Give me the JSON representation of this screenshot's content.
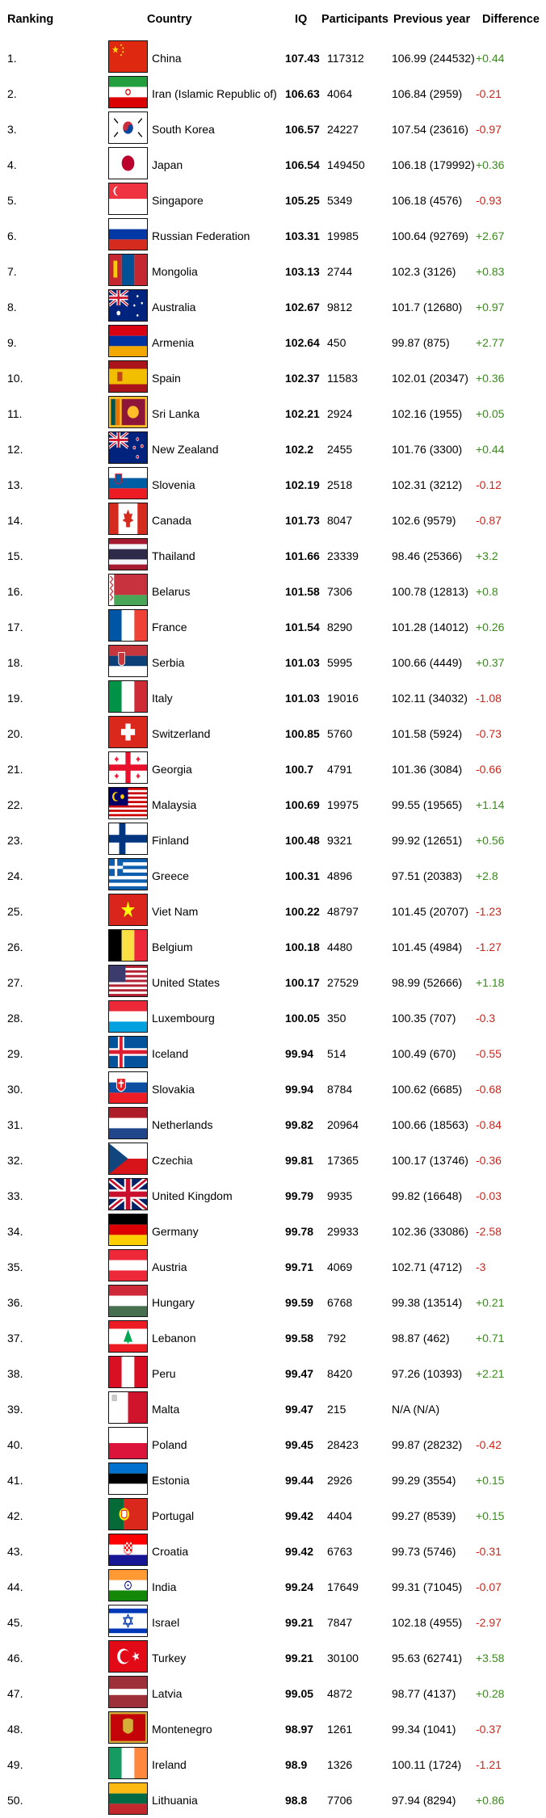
{
  "headers": {
    "ranking": "Ranking",
    "country": "Country",
    "iq": "IQ",
    "participants": "Participants",
    "previous": "Previous year",
    "difference": "Difference"
  },
  "rows": [
    {
      "rank": "1.",
      "country": "China",
      "iq": "107.43",
      "participants": "117312",
      "previous": "106.99 (244532)",
      "diff": "+0.44",
      "flag": "china-flag"
    },
    {
      "rank": "2.",
      "country": "Iran (Islamic Republic of)",
      "iq": "106.63",
      "participants": "4064",
      "previous": "106.84 (2959)",
      "diff": "-0.21",
      "flag": "iran-flag"
    },
    {
      "rank": "3.",
      "country": "South Korea",
      "iq": "106.57",
      "participants": "24227",
      "previous": "107.54 (23616)",
      "diff": "-0.97",
      "flag": "south-korea-flag"
    },
    {
      "rank": "4.",
      "country": "Japan",
      "iq": "106.54",
      "participants": "149450",
      "previous": "106.18 (179992)",
      "diff": "+0.36",
      "flag": "japan-flag"
    },
    {
      "rank": "5.",
      "country": "Singapore",
      "iq": "105.25",
      "participants": "5349",
      "previous": "106.18 (4576)",
      "diff": "-0.93",
      "flag": "singapore-flag"
    },
    {
      "rank": "6.",
      "country": "Russian Federation",
      "iq": "103.31",
      "participants": "19985",
      "previous": "100.64 (92769)",
      "diff": "+2.67",
      "flag": "russia-flag"
    },
    {
      "rank": "7.",
      "country": "Mongolia",
      "iq": "103.13",
      "participants": "2744",
      "previous": "102.3 (3126)",
      "diff": "+0.83",
      "flag": "mongolia-flag"
    },
    {
      "rank": "8.",
      "country": "Australia",
      "iq": "102.67",
      "participants": "9812",
      "previous": "101.7 (12680)",
      "diff": "+0.97",
      "flag": "australia-flag"
    },
    {
      "rank": "9.",
      "country": "Armenia",
      "iq": "102.64",
      "participants": "450",
      "previous": "99.87 (875)",
      "diff": "+2.77",
      "flag": "armenia-flag"
    },
    {
      "rank": "10.",
      "country": "Spain",
      "iq": "102.37",
      "participants": "11583",
      "previous": "102.01 (20347)",
      "diff": "+0.36",
      "flag": "spain-flag"
    },
    {
      "rank": "11.",
      "country": "Sri Lanka",
      "iq": "102.21",
      "participants": "2924",
      "previous": "102.16 (1955)",
      "diff": "+0.05",
      "flag": "sri-lanka-flag"
    },
    {
      "rank": "12.",
      "country": "New Zealand",
      "iq": "102.2",
      "participants": "2455",
      "previous": "101.76 (3300)",
      "diff": "+0.44",
      "flag": "new-zealand-flag"
    },
    {
      "rank": "13.",
      "country": "Slovenia",
      "iq": "102.19",
      "participants": "2518",
      "previous": "102.31 (3212)",
      "diff": "-0.12",
      "flag": "slovenia-flag"
    },
    {
      "rank": "14.",
      "country": "Canada",
      "iq": "101.73",
      "participants": "8047",
      "previous": "102.6 (9579)",
      "diff": "-0.87",
      "flag": "canada-flag"
    },
    {
      "rank": "15.",
      "country": "Thailand",
      "iq": "101.66",
      "participants": "23339",
      "previous": "98.46 (25366)",
      "diff": "+3.2",
      "flag": "thailand-flag"
    },
    {
      "rank": "16.",
      "country": "Belarus",
      "iq": "101.58",
      "participants": "7306",
      "previous": "100.78 (12813)",
      "diff": "+0.8",
      "flag": "belarus-flag"
    },
    {
      "rank": "17.",
      "country": "France",
      "iq": "101.54",
      "participants": "8290",
      "previous": "101.28 (14012)",
      "diff": "+0.26",
      "flag": "france-flag"
    },
    {
      "rank": "18.",
      "country": "Serbia",
      "iq": "101.03",
      "participants": "5995",
      "previous": "100.66 (4449)",
      "diff": "+0.37",
      "flag": "serbia-flag"
    },
    {
      "rank": "19.",
      "country": "Italy",
      "iq": "101.03",
      "participants": "19016",
      "previous": "102.11 (34032)",
      "diff": "-1.08",
      "flag": "italy-flag"
    },
    {
      "rank": "20.",
      "country": "Switzerland",
      "iq": "100.85",
      "participants": "5760",
      "previous": "101.58 (5924)",
      "diff": "-0.73",
      "flag": "switzerland-flag"
    },
    {
      "rank": "21.",
      "country": "Georgia",
      "iq": "100.7",
      "participants": "4791",
      "previous": "101.36 (3084)",
      "diff": "-0.66",
      "flag": "georgia-flag"
    },
    {
      "rank": "22.",
      "country": "Malaysia",
      "iq": "100.69",
      "participants": "19975",
      "previous": "99.55 (19565)",
      "diff": "+1.14",
      "flag": "malaysia-flag"
    },
    {
      "rank": "23.",
      "country": "Finland",
      "iq": "100.48",
      "participants": "9321",
      "previous": "99.92 (12651)",
      "diff": "+0.56",
      "flag": "finland-flag"
    },
    {
      "rank": "24.",
      "country": "Greece",
      "iq": "100.31",
      "participants": "4896",
      "previous": "97.51 (20383)",
      "diff": "+2.8",
      "flag": "greece-flag"
    },
    {
      "rank": "25.",
      "country": "Viet Nam",
      "iq": "100.22",
      "participants": "48797",
      "previous": "101.45 (20707)",
      "diff": "-1.23",
      "flag": "vietnam-flag"
    },
    {
      "rank": "26.",
      "country": "Belgium",
      "iq": "100.18",
      "participants": "4480",
      "previous": "101.45 (4984)",
      "diff": "-1.27",
      "flag": "belgium-flag"
    },
    {
      "rank": "27.",
      "country": "United States",
      "iq": "100.17",
      "participants": "27529",
      "previous": "98.99 (52666)",
      "diff": "+1.18",
      "flag": "usa-flag"
    },
    {
      "rank": "28.",
      "country": "Luxembourg",
      "iq": "100.05",
      "participants": "350",
      "previous": "100.35 (707)",
      "diff": "-0.3",
      "flag": "luxembourg-flag"
    },
    {
      "rank": "29.",
      "country": "Iceland",
      "iq": "99.94",
      "participants": "514",
      "previous": "100.49 (670)",
      "diff": "-0.55",
      "flag": "iceland-flag"
    },
    {
      "rank": "30.",
      "country": "Slovakia",
      "iq": "99.94",
      "participants": "8784",
      "previous": "100.62 (6685)",
      "diff": "-0.68",
      "flag": "slovakia-flag"
    },
    {
      "rank": "31.",
      "country": "Netherlands",
      "iq": "99.82",
      "participants": "20964",
      "previous": "100.66 (18563)",
      "diff": "-0.84",
      "flag": "netherlands-flag"
    },
    {
      "rank": "32.",
      "country": "Czechia",
      "iq": "99.81",
      "participants": "17365",
      "previous": "100.17 (13746)",
      "diff": "-0.36",
      "flag": "czechia-flag"
    },
    {
      "rank": "33.",
      "country": "United Kingdom",
      "iq": "99.79",
      "participants": "9935",
      "previous": "99.82 (16648)",
      "diff": "-0.03",
      "flag": "uk-flag"
    },
    {
      "rank": "34.",
      "country": "Germany",
      "iq": "99.78",
      "participants": "29933",
      "previous": "102.36 (33086)",
      "diff": "-2.58",
      "flag": "germany-flag"
    },
    {
      "rank": "35.",
      "country": "Austria",
      "iq": "99.71",
      "participants": "4069",
      "previous": "102.71 (4712)",
      "diff": "-3",
      "flag": "austria-flag"
    },
    {
      "rank": "36.",
      "country": "Hungary",
      "iq": "99.59",
      "participants": "6768",
      "previous": "99.38 (13514)",
      "diff": "+0.21",
      "flag": "hungary-flag"
    },
    {
      "rank": "37.",
      "country": "Lebanon",
      "iq": "99.58",
      "participants": "792",
      "previous": "98.87 (462)",
      "diff": "+0.71",
      "flag": "lebanon-flag"
    },
    {
      "rank": "38.",
      "country": "Peru",
      "iq": "99.47",
      "participants": "8420",
      "previous": "97.26 (10393)",
      "diff": "+2.21",
      "flag": "peru-flag"
    },
    {
      "rank": "39.",
      "country": "Malta",
      "iq": "99.47",
      "participants": "215",
      "previous": "N/A (N/A)",
      "diff": "",
      "flag": "malta-flag"
    },
    {
      "rank": "40.",
      "country": "Poland",
      "iq": "99.45",
      "participants": "28423",
      "previous": "99.87 (28232)",
      "diff": "-0.42",
      "flag": "poland-flag"
    },
    {
      "rank": "41.",
      "country": "Estonia",
      "iq": "99.44",
      "participants": "2926",
      "previous": "99.29 (3554)",
      "diff": "+0.15",
      "flag": "estonia-flag"
    },
    {
      "rank": "42.",
      "country": "Portugal",
      "iq": "99.42",
      "participants": "4404",
      "previous": "99.27 (8539)",
      "diff": "+0.15",
      "flag": "portugal-flag"
    },
    {
      "rank": "43.",
      "country": "Croatia",
      "iq": "99.42",
      "participants": "6763",
      "previous": "99.73 (5746)",
      "diff": "-0.31",
      "flag": "croatia-flag"
    },
    {
      "rank": "44.",
      "country": "India",
      "iq": "99.24",
      "participants": "17649",
      "previous": "99.31 (71045)",
      "diff": "-0.07",
      "flag": "india-flag"
    },
    {
      "rank": "45.",
      "country": "Israel",
      "iq": "99.21",
      "participants": "7847",
      "previous": "102.18 (4955)",
      "diff": "-2.97",
      "flag": "israel-flag"
    },
    {
      "rank": "46.",
      "country": "Turkey",
      "iq": "99.21",
      "participants": "30100",
      "previous": "95.63 (62741)",
      "diff": "+3.58",
      "flag": "turkey-flag"
    },
    {
      "rank": "47.",
      "country": "Latvia",
      "iq": "99.05",
      "participants": "4872",
      "previous": "98.77 (4137)",
      "diff": "+0.28",
      "flag": "latvia-flag"
    },
    {
      "rank": "48.",
      "country": "Montenegro",
      "iq": "98.97",
      "participants": "1261",
      "previous": "99.34 (1041)",
      "diff": "-0.37",
      "flag": "montenegro-flag"
    },
    {
      "rank": "49.",
      "country": "Ireland",
      "iq": "98.9",
      "participants": "1326",
      "previous": "100.11 (1724)",
      "diff": "-1.21",
      "flag": "ireland-flag"
    },
    {
      "rank": "50.",
      "country": "Lithuania",
      "iq": "98.8",
      "participants": "7706",
      "previous": "97.94 (8294)",
      "diff": "+0.86",
      "flag": "lithuania-flag"
    }
  ]
}
